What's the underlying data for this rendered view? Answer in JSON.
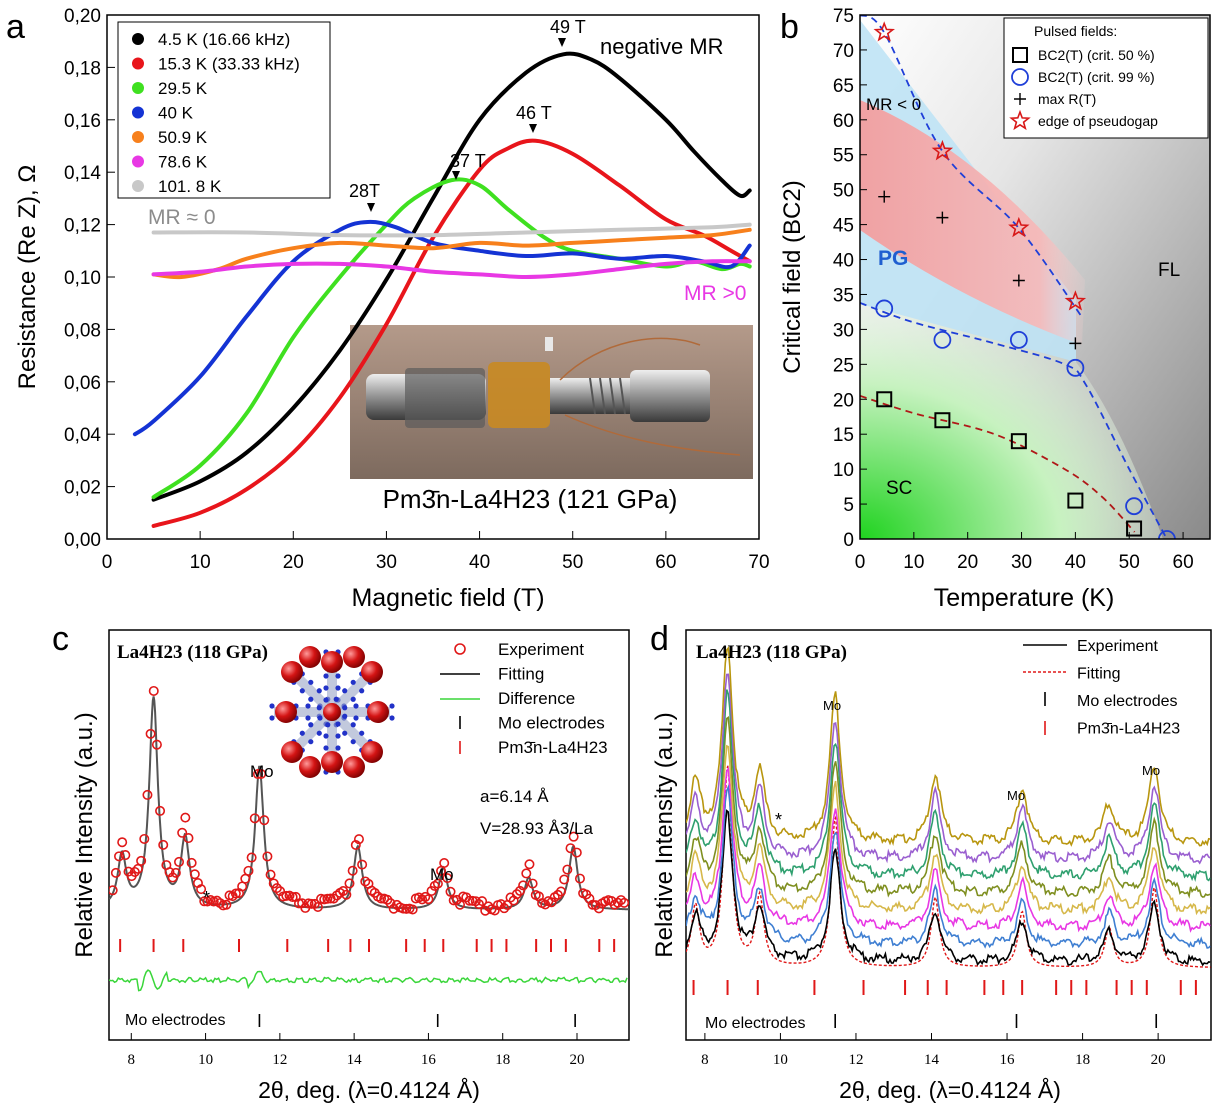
{
  "panels": {
    "a": {
      "letter": "a",
      "xlabel": "Magnetic field (T)",
      "ylabel": "Resistance (Re Z), Ω",
      "x_ticks": [
        "0",
        "10",
        "20",
        "30",
        "40",
        "50",
        "60",
        "70"
      ],
      "y_ticks": [
        "0,00",
        "0,02",
        "0,04",
        "0,06",
        "0,08",
        "0,10",
        "0,12",
        "0,14",
        "0,16",
        "0,18",
        "0,20"
      ],
      "legend": [
        "4.5 K (16.66 kHz)",
        "15.3 K (33.33 kHz)",
        "29.5 K",
        "40 K",
        "50.9 K",
        "78.6 K",
        "101. 8 K"
      ],
      "annotations": {
        "neg": "negative MR",
        "mr0": "MR ≈ 0",
        "mrpos": "MR >0",
        "p49": "49 T",
        "p46": "46 T",
        "p37": "37 T",
        "p28": "28T"
      },
      "photo_caption": "Pm3̄n-La4H23 (121 GPa)"
    },
    "b": {
      "letter": "b",
      "xlabel": "Temperature (K)",
      "ylabel": "Critical field (BC2)",
      "x_ticks": [
        "0",
        "10",
        "20",
        "30",
        "40",
        "50",
        "60"
      ],
      "y_ticks": [
        "0",
        "5",
        "10",
        "15",
        "20",
        "25",
        "30",
        "35",
        "40",
        "45",
        "50",
        "55",
        "60",
        "65",
        "70",
        "75"
      ],
      "legend_title": "Pulsed fields:",
      "legend": [
        "BC2(T) (crit. 50 %)",
        "BC2(T) (crit. 99 %)",
        "max R(T)",
        "edge of pseudogap"
      ],
      "regions": {
        "mr": "MR < 0",
        "pg": "PG",
        "fl": "FL",
        "sc": "SC"
      }
    },
    "c": {
      "letter": "c",
      "title": "La4H23 (118 GPa)",
      "xlabel": "2θ, deg. (λ=0.4124 Å)",
      "ylabel": "Relative Intensity (a.u.)",
      "x_ticks": [
        "8",
        "10",
        "12",
        "14",
        "16",
        "18",
        "20"
      ],
      "legend": [
        "Experiment",
        "Fitting",
        "Difference",
        "Mo electrodes",
        "Pm3̄n-La4H23"
      ],
      "lattice_a": "a=6.14 Å",
      "lattice_v": "V=28.93 Å3/La",
      "labels": {
        "mo": "Mo",
        "mo_electrodes": "Mo electrodes",
        "star": "*"
      }
    },
    "d": {
      "letter": "d",
      "title": "La4H23 (118 GPa)",
      "xlabel": "2θ, deg. (λ=0.4124 Å)",
      "ylabel": "Relative Intensity (a.u.)",
      "x_ticks": [
        "8",
        "10",
        "12",
        "14",
        "16",
        "18",
        "20"
      ],
      "legend": [
        "Experiment",
        "Fitting",
        "Mo electrodes",
        "Pm3̄n-La4H23"
      ],
      "labels": {
        "mo": "Mo",
        "mo_electrodes": "Mo electrodes",
        "star": "*"
      }
    }
  },
  "chart_data": [
    {
      "type": "line",
      "panel": "a",
      "xlabel": "Magnetic field (T)",
      "ylabel": "Resistance (Re Z), Ω",
      "xlim": [
        0,
        70
      ],
      "ylim": [
        0,
        0.2
      ],
      "series": [
        {
          "name": "4.5 K (16.66 kHz)",
          "color": "#000000",
          "x": [
            5,
            10,
            15,
            20,
            25,
            30,
            35,
            40,
            45,
            49,
            52,
            55,
            60,
            63,
            66,
            68,
            69
          ],
          "y": [
            0.015,
            0.022,
            0.033,
            0.05,
            0.072,
            0.099,
            0.13,
            0.16,
            0.178,
            0.185,
            0.183,
            0.176,
            0.16,
            0.148,
            0.137,
            0.131,
            0.133
          ]
        },
        {
          "name": "15.3 K (33.33 kHz)",
          "color": "#e8151b",
          "x": [
            5,
            10,
            15,
            20,
            25,
            30,
            35,
            40,
            43,
            46,
            50,
            55,
            60,
            64,
            67,
            69
          ],
          "y": [
            0.005,
            0.01,
            0.019,
            0.033,
            0.054,
            0.082,
            0.115,
            0.141,
            0.149,
            0.152,
            0.147,
            0.135,
            0.122,
            0.116,
            0.11,
            0.106
          ]
        },
        {
          "name": "29.5 K",
          "color": "#3fe020",
          "x": [
            5,
            10,
            15,
            20,
            25,
            30,
            33,
            37,
            40,
            43,
            47,
            50,
            55,
            60,
            63,
            66,
            68,
            69
          ],
          "y": [
            0.016,
            0.028,
            0.048,
            0.077,
            0.1,
            0.12,
            0.13,
            0.137,
            0.135,
            0.126,
            0.115,
            0.11,
            0.107,
            0.104,
            0.106,
            0.103,
            0.105,
            0.104
          ]
        },
        {
          "name": "40 K",
          "color": "#1433d4",
          "x": [
            3,
            5,
            10,
            15,
            20,
            25,
            28,
            31,
            35,
            40,
            45,
            50,
            55,
            60,
            64,
            67,
            69
          ],
          "y": [
            0.04,
            0.045,
            0.062,
            0.085,
            0.106,
            0.118,
            0.121,
            0.119,
            0.113,
            0.11,
            0.108,
            0.109,
            0.107,
            0.108,
            0.106,
            0.104,
            0.112
          ]
        },
        {
          "name": "50.9 K",
          "color": "#f7801c",
          "x": [
            5,
            8,
            12,
            15,
            20,
            25,
            30,
            35,
            40,
            45,
            50,
            55,
            60,
            65,
            69
          ],
          "y": [
            0.101,
            0.1,
            0.103,
            0.107,
            0.111,
            0.113,
            0.112,
            0.111,
            0.113,
            0.112,
            0.113,
            0.114,
            0.115,
            0.116,
            0.118
          ]
        },
        {
          "name": "78.6 K",
          "color": "#e838e4",
          "x": [
            5,
            10,
            15,
            20,
            25,
            30,
            35,
            40,
            45,
            50,
            55,
            60,
            65,
            69
          ],
          "y": [
            0.101,
            0.102,
            0.104,
            0.105,
            0.105,
            0.104,
            0.102,
            0.101,
            0.1,
            0.101,
            0.103,
            0.105,
            0.106,
            0.106
          ]
        },
        {
          "name": "101. 8 K",
          "color": "#c8c8c8",
          "x": [
            5,
            15,
            25,
            35,
            45,
            55,
            65,
            69
          ],
          "y": [
            0.117,
            0.117,
            0.116,
            0.116,
            0.117,
            0.118,
            0.119,
            0.12
          ]
        }
      ]
    },
    {
      "type": "scatter",
      "panel": "b",
      "xlabel": "Temperature (K)",
      "ylabel": "Critical field (BC2)",
      "xlim": [
        0,
        65
      ],
      "ylim": [
        0,
        75
      ],
      "series": [
        {
          "name": "BC2(T) (crit. 50 %)",
          "marker": "square",
          "x": [
            4.5,
            15.3,
            29.5,
            40,
            50.9
          ],
          "y": [
            20,
            17,
            14,
            5.5,
            1.5
          ]
        },
        {
          "name": "BC2(T) (crit. 99 %)",
          "marker": "circle",
          "x": [
            4.5,
            15.3,
            29.5,
            40,
            50.9,
            57
          ],
          "y": [
            33,
            28.5,
            28.5,
            24.5,
            4.7,
            0
          ]
        },
        {
          "name": "max R(T)",
          "marker": "plus",
          "x": [
            4.5,
            15.3,
            29.5,
            40
          ],
          "y": [
            49,
            46,
            37,
            28
          ]
        },
        {
          "name": "edge of pseudogap",
          "marker": "star",
          "x": [
            4.5,
            15.3,
            29.5,
            40
          ],
          "y": [
            72.5,
            55.5,
            44.5,
            34
          ]
        }
      ]
    },
    {
      "type": "line",
      "panel": "c",
      "xlabel": "2θ, deg. (λ=0.4124 Å)",
      "ylabel": "Relative Intensity (a.u.)",
      "xlim": [
        7.4,
        21.4
      ],
      "series": [
        {
          "name": "Experiment",
          "peaks": [
            [
              7.75,
              0.28
            ],
            [
              8.6,
              1.0
            ],
            [
              9.45,
              0.36
            ],
            [
              11.45,
              0.68
            ],
            [
              14.1,
              0.33
            ],
            [
              16.4,
              0.22
            ],
            [
              18.7,
              0.17
            ],
            [
              19.9,
              0.33
            ]
          ]
        },
        {
          "name": "Fitting",
          "peaks": [
            [
              7.75,
              0.25
            ],
            [
              8.6,
              1.0
            ],
            [
              9.45,
              0.33
            ],
            [
              11.45,
              0.68
            ],
            [
              14.1,
              0.3
            ],
            [
              16.4,
              0.2
            ],
            [
              18.7,
              0.15
            ],
            [
              19.9,
              0.3
            ]
          ]
        }
      ],
      "pm3n_ticks": [
        7.7,
        8.6,
        9.4,
        10.9,
        12.2,
        13.3,
        13.9,
        14.4,
        15.4,
        15.9,
        16.4,
        17.3,
        17.7,
        18.1,
        18.9,
        19.3,
        19.7,
        20.6,
        21.0
      ],
      "mo_ticks": [
        11.45,
        16.25,
        19.95
      ]
    },
    {
      "type": "line",
      "panel": "d",
      "xlabel": "2θ, deg. (λ=0.4124 Å)",
      "ylabel": "Relative Intensity (a.u.)",
      "xlim": [
        7.5,
        21.4
      ],
      "series_colors": [
        "#000000",
        "#3f7fd2",
        "#e838e4",
        "#d6b84a",
        "#7f8f20",
        "#2fa06f",
        "#9a5fd0",
        "#b8960f"
      ],
      "pm3n_ticks": [
        7.7,
        8.6,
        9.4,
        10.9,
        12.2,
        13.3,
        13.9,
        14.4,
        15.4,
        15.9,
        16.4,
        17.3,
        17.7,
        18.1,
        18.9,
        19.3,
        19.7,
        20.6,
        21.0
      ],
      "mo_ticks": [
        11.45,
        16.25,
        19.95
      ]
    }
  ]
}
